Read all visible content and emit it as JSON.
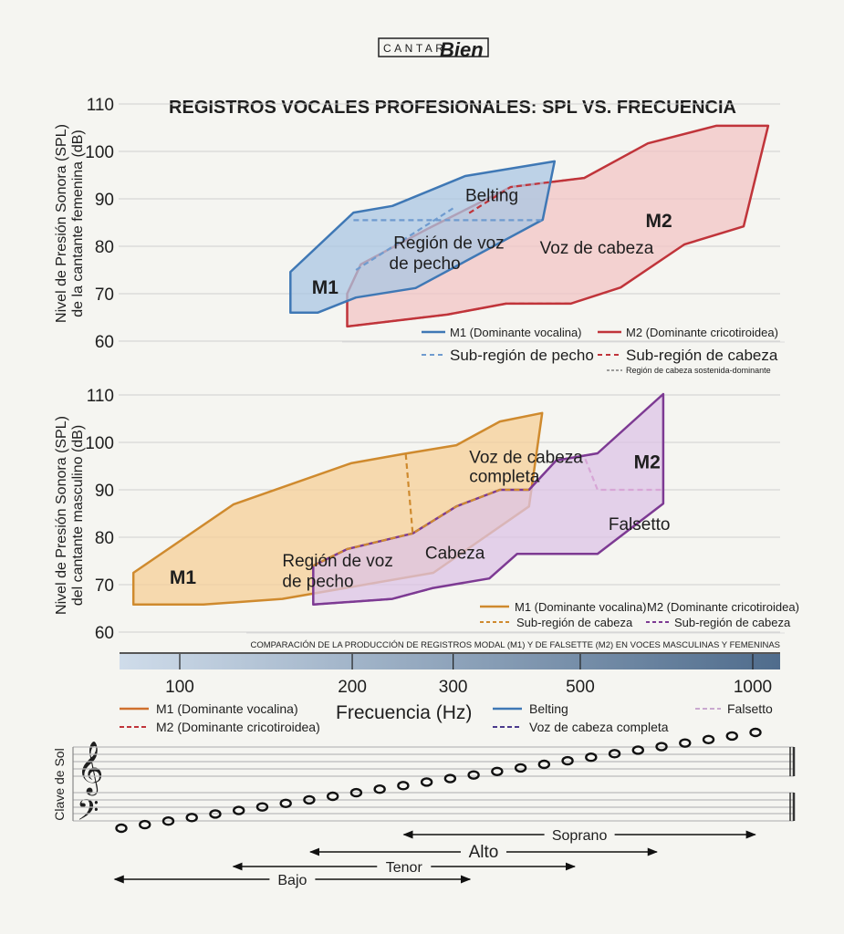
{
  "logo": {
    "left": "CANTAR",
    "right": "Bien"
  },
  "chart_data": [
    {
      "type": "area",
      "title": "REGISTROS VOCALES PROFESIONALES: SPL VS. FRECUENCIA",
      "ylabel": [
        "Nivel de Presión Sonora (SPL)",
        "de la cantante femenina (dB)"
      ],
      "xlabel": "Frecuencia (Hz)",
      "xscale": "log",
      "xlim": [
        73,
        1190
      ],
      "ylim": [
        60,
        110
      ],
      "yticks": [
        60,
        70,
        80,
        90,
        100,
        110
      ],
      "grid": true,
      "series": [
        {
          "name": "M1 (Dominante vocalina)",
          "color": "#3f78b5",
          "fill": "#a9c6e3",
          "style": "solid",
          "points": [
            [
              156,
              74.6
            ],
            [
              156,
              66
            ],
            [
              174,
              66
            ],
            [
              203,
              69.2
            ],
            [
              258,
              71.2
            ],
            [
              430,
              85.6
            ],
            [
              451,
              97.9
            ],
            [
              315,
              94.8
            ],
            [
              235,
              88.5
            ],
            [
              201,
              87.1
            ]
          ]
        },
        {
          "name": "M2 (Dominante cricotiroidea)",
          "color": "#c0343a",
          "fill": "#f2c4c4",
          "style": "solid",
          "points": [
            [
              196,
              63.1
            ],
            [
              196,
              70
            ],
            [
              207,
              76.2
            ],
            [
              272,
              83.8
            ],
            [
              378,
              92.5
            ],
            [
              508,
              94.4
            ],
            [
              656,
              101.7
            ],
            [
              863,
              105.4
            ],
            [
              1064,
              105.4
            ],
            [
              964,
              84.2
            ],
            [
              760,
              80.4
            ],
            [
              588,
              71.3
            ],
            [
              481,
              67.9
            ],
            [
              371,
              67.9
            ],
            [
              293,
              65.6
            ]
          ]
        }
      ],
      "dashed_lines": [
        {
          "name": "Sub-región de pecho",
          "color": "#6f9bcf",
          "points": [
            [
              201,
              85.5
            ],
            [
              430,
              85.5
            ]
          ]
        },
        {
          "name": "Sub-región de pecho",
          "color": "#6f9bcf",
          "points": [
            [
              203,
              75
            ],
            [
              258,
              83
            ],
            [
              300,
              88
            ]
          ]
        },
        {
          "name": "Sub-región de cabeza",
          "color": "#c0343a",
          "points": [
            [
              196,
              63.1
            ],
            [
              293,
              65.6
            ],
            [
              371,
              67.9
            ],
            [
              481,
              67.9
            ]
          ]
        },
        {
          "name": "Sub-región de cabeza",
          "color": "#c0343a",
          "points": [
            [
              320,
              87
            ],
            [
              378,
              92.5
            ],
            [
              508,
              94.4
            ]
          ]
        }
      ],
      "annotations": [
        {
          "text": "M1",
          "x": 170,
          "y": 70,
          "bold": true
        },
        {
          "text": "Belting",
          "x": 315,
          "y": 89.5
        },
        {
          "text": "Región de voz",
          "x": 236,
          "y": 79.5
        },
        {
          "text": "de pecho",
          "x": 232,
          "y": 75.2
        },
        {
          "text": "Voz de cabeza",
          "x": 425,
          "y": 78.5
        },
        {
          "text": "M2",
          "x": 650,
          "y": 84,
          "bold": true
        }
      ],
      "legend": [
        {
          "label": "M1 (Dominante vocalina)",
          "color": "#3f78b5",
          "style": "solid"
        },
        {
          "label": "M2 (Dominante cricotiroidea)",
          "color": "#c0343a",
          "style": "solid"
        },
        {
          "label": "Sub-región de pecho",
          "color": "#6f9bcf",
          "style": "dashed"
        },
        {
          "label": "Sub-región de cabeza",
          "color": "#c0343a",
          "style": "dashed"
        },
        {
          "label": "Región de cabeza sostenida-dominante",
          "color": "#444444",
          "style": "dashed"
        }
      ]
    },
    {
      "type": "area",
      "ylabel": [
        "Nivel de Presión Sonora (SPL)",
        "del cantante masculino (dB)"
      ],
      "xscale": "log",
      "xlim": [
        73,
        1190
      ],
      "ylim": [
        60,
        110
      ],
      "yticks": [
        60,
        70,
        80,
        90,
        100,
        110
      ],
      "grid": true,
      "series": [
        {
          "name": "M1 (Dominante vocalina)",
          "color": "#cf8a2e",
          "fill": "#f6cf97",
          "style": "solid",
          "points": [
            [
              83,
              72.5
            ],
            [
              83,
              65.8
            ],
            [
              110,
              65.8
            ],
            [
              151,
              67
            ],
            [
              277,
              72.5
            ],
            [
              407,
              86.5
            ],
            [
              429,
              106.2
            ],
            [
              362,
              104.4
            ],
            [
              304,
              99.4
            ],
            [
              244,
              97.5
            ],
            [
              199,
              95.6
            ],
            [
              124,
              86.9
            ]
          ]
        },
        {
          "name": "M2 (Dominante cricotiroidea)",
          "color": "#7d3a93",
          "fill": "#dcc3e6",
          "style": "solid",
          "points": [
            [
              171,
              65.8
            ],
            [
              235,
              67
            ],
            [
              277,
              69.3
            ],
            [
              347,
              71.3
            ],
            [
              388,
              76.5
            ],
            [
              536,
              76.5
            ],
            [
              698,
              87.1
            ],
            [
              698,
              110.2
            ],
            [
              536,
              97.7
            ],
            [
              454,
              96.2
            ],
            [
              407,
              90
            ],
            [
              362,
              90
            ],
            [
              304,
              86.5
            ],
            [
              255,
              80.8
            ],
            [
              196,
              77.5
            ],
            [
              171,
              74
            ]
          ]
        }
      ],
      "dashed_lines": [
        {
          "name": "Sub-región de cabeza (M1)",
          "color": "#cf8a2e",
          "points": [
            [
              248,
              97.5
            ],
            [
              255,
              80.8
            ],
            [
              304,
              86.5
            ],
            [
              362,
              90
            ],
            [
              407,
              90
            ]
          ]
        },
        {
          "name": "Sub-región de cabeza (M1)",
          "color": "#cf8a2e",
          "points": [
            [
              171,
              74
            ],
            [
              196,
              77.5
            ],
            [
              255,
              80.8
            ]
          ]
        },
        {
          "name": "Sub-región de cabeza (M2)",
          "color": "#7d3a93",
          "points": [
            [
              171,
              65.8
            ],
            [
              235,
              67
            ],
            [
              277,
              69.3
            ]
          ]
        },
        {
          "name": "Sub-región de cabeza (M2)",
          "color": "#7d3a93",
          "points": [
            [
              407,
              90
            ],
            [
              454,
              96.2
            ],
            [
              536,
              97.7
            ]
          ]
        },
        {
          "name": "Falsetto",
          "color": "#d7a6d6",
          "points": [
            [
              510,
              96.5
            ],
            [
              536,
              90
            ],
            [
              698,
              90
            ]
          ]
        }
      ],
      "annotations": [
        {
          "text": "M1",
          "x": 96,
          "y": 70.2,
          "bold": true
        },
        {
          "text": "Región de voz",
          "x": 151,
          "y": 73.8
        },
        {
          "text": "de pecho",
          "x": 151,
          "y": 69.5
        },
        {
          "text": "Voz de cabeza",
          "x": 320,
          "y": 95.7
        },
        {
          "text": "completa",
          "x": 320,
          "y": 91.6
        },
        {
          "text": "Cabeza",
          "x": 268,
          "y": 75.5
        },
        {
          "text": "Falsetto",
          "x": 560,
          "y": 81.5
        },
        {
          "text": "M2",
          "x": 620,
          "y": 94.5,
          "bold": true
        }
      ],
      "legend": [
        {
          "label": "M1 (Dominante vocalina)",
          "color": "#cf8a2e",
          "style": "solid"
        },
        {
          "label": "M2 (Dominante cricotiroidea)",
          "color": "#7d3a93",
          "style": "none"
        },
        {
          "label": "Sub-región de cabeza",
          "color": "#cf8a2e",
          "style": "dashed"
        },
        {
          "label": "Sub-región de cabeza",
          "color": "#7d3a93",
          "style": "dashed"
        }
      ]
    }
  ],
  "axis": {
    "caption": "COMPARACIÓN DE LA PRODUCCIÓN DE REGISTROS MODAL (M1) Y DE FALSETTE (M2) EN VOCES MASCULINAS Y FEMENINAS",
    "xticks": [
      100,
      200,
      300,
      500,
      1000
    ],
    "xtick_labels": [
      "100",
      "200",
      "300",
      "500",
      "1000"
    ],
    "xlabel": "Frecuencia (Hz)"
  },
  "bottom_legend": [
    {
      "label": "M1 (Dominante vocalina)",
      "color": "#d0702e",
      "style": "solid"
    },
    {
      "label": "M2 (Dominante cricotiroidea)",
      "color": "#c0343a",
      "style": "dashed"
    },
    {
      "label": "Belting",
      "color": "#3f78b5",
      "style": "solid"
    },
    {
      "label": "Voz de cabeza completa",
      "color": "#4a3a8c",
      "style": "dashed"
    },
    {
      "label": "Falsetto",
      "color": "#c9a9cf",
      "style": "dashed"
    }
  ],
  "staff": {
    "label": "Clave de Sol",
    "treble_clef": "𝄞",
    "bass_clef": "𝄢"
  },
  "voice_ranges": [
    {
      "name": "Soprano",
      "min_hz": 246,
      "max_hz": 1010
    },
    {
      "name": "Alto",
      "min_hz": 169,
      "max_hz": 680
    },
    {
      "name": "Tenor",
      "min_hz": 124,
      "max_hz": 489
    },
    {
      "name": "Bajo",
      "min_hz": 77,
      "max_hz": 321
    }
  ]
}
